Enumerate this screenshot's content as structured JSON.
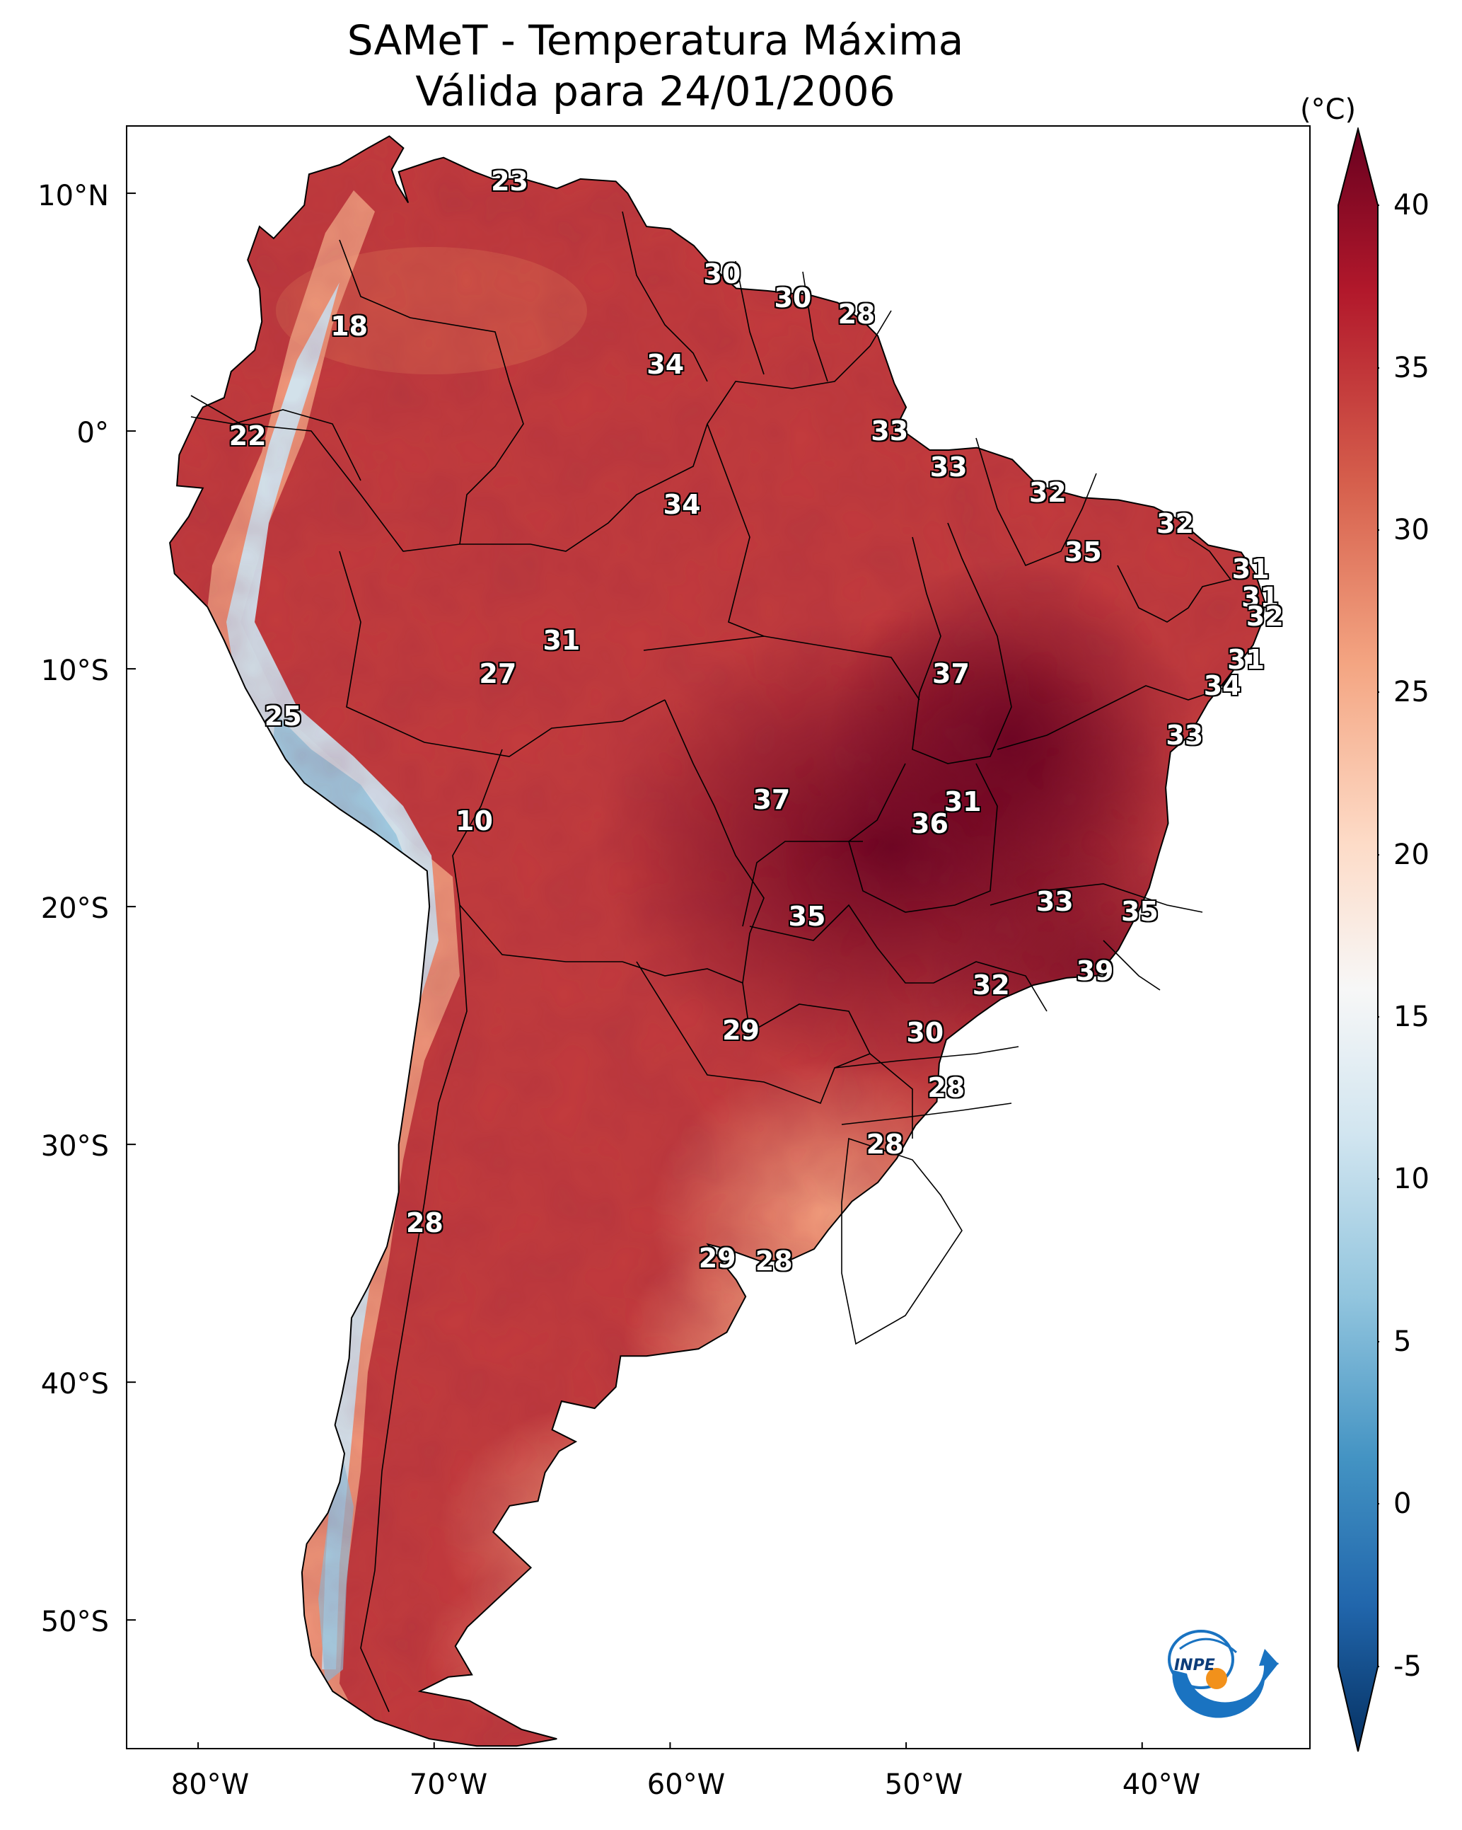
{
  "title": {
    "line1": "SAMeT - Temperatura Máxima",
    "line2": "Válida para 24/01/2006"
  },
  "axes": {
    "lon_ticks": [
      "80°W",
      "70°W",
      "60°W",
      "50°W",
      "40°W"
    ],
    "lat_ticks": [
      "10°N",
      "0°",
      "10°S",
      "20°S",
      "30°S",
      "40°S",
      "50°S"
    ]
  },
  "colorbar": {
    "unit": "(°C)",
    "ticks": [
      "40",
      "35",
      "30",
      "25",
      "20",
      "15",
      "10",
      "5",
      "0",
      "-5"
    ],
    "min": -5,
    "max": 40,
    "colors": {
      "max": "#67001f",
      "hot": "#b2182b",
      "warm": "#d6604d",
      "mild": "#f4a582",
      "pale": "#fddbc7",
      "neutral": "#f7f7f7",
      "cool": "#d1e5f0",
      "cold": "#92c5de",
      "colder": "#4393c3",
      "coldest": "#2166ac",
      "min": "#053061"
    }
  },
  "map_labels": [
    {
      "text": "23",
      "lon": -66.8,
      "lat": 10.5
    },
    {
      "text": "18",
      "lon": -73.6,
      "lat": 4.4
    },
    {
      "text": "30",
      "lon": -57.8,
      "lat": 6.6
    },
    {
      "text": "30",
      "lon": -54.8,
      "lat": 5.6
    },
    {
      "text": "28",
      "lon": -52.1,
      "lat": 4.9
    },
    {
      "text": "34",
      "lon": -60.2,
      "lat": 2.8
    },
    {
      "text": "22",
      "lon": -77.9,
      "lat": -0.2
    },
    {
      "text": "33",
      "lon": -50.7,
      "lat": 0.0
    },
    {
      "text": "33",
      "lon": -48.2,
      "lat": -1.5
    },
    {
      "text": "32",
      "lon": -44.0,
      "lat": -2.6
    },
    {
      "text": "32",
      "lon": -38.6,
      "lat": -3.9
    },
    {
      "text": "34",
      "lon": -59.5,
      "lat": -3.1
    },
    {
      "text": "35",
      "lon": -42.5,
      "lat": -5.1
    },
    {
      "text": "31",
      "lon": -35.4,
      "lat": -5.8
    },
    {
      "text": "31",
      "lon": -35.0,
      "lat": -7.0
    },
    {
      "text": "32",
      "lon": -34.8,
      "lat": -7.8
    },
    {
      "text": "31",
      "lon": -64.6,
      "lat": -8.8
    },
    {
      "text": "27",
      "lon": -67.3,
      "lat": -10.2
    },
    {
      "text": "37",
      "lon": -48.1,
      "lat": -10.2
    },
    {
      "text": "31",
      "lon": -35.6,
      "lat": -9.6
    },
    {
      "text": "34",
      "lon": -36.6,
      "lat": -10.7
    },
    {
      "text": "25",
      "lon": -76.4,
      "lat": -12.0
    },
    {
      "text": "33",
      "lon": -38.2,
      "lat": -12.8
    },
    {
      "text": "37",
      "lon": -55.7,
      "lat": -15.5
    },
    {
      "text": "31",
      "lon": -47.6,
      "lat": -15.6
    },
    {
      "text": "36",
      "lon": -49.0,
      "lat": -16.5
    },
    {
      "text": "10",
      "lon": -68.3,
      "lat": -16.4
    },
    {
      "text": "33",
      "lon": -43.7,
      "lat": -19.8
    },
    {
      "text": "35",
      "lon": -40.1,
      "lat": -20.2
    },
    {
      "text": "35",
      "lon": -54.2,
      "lat": -20.4
    },
    {
      "text": "39",
      "lon": -42.0,
      "lat": -22.7
    },
    {
      "text": "32",
      "lon": -46.4,
      "lat": -23.3
    },
    {
      "text": "29",
      "lon": -57.0,
      "lat": -25.2
    },
    {
      "text": "30",
      "lon": -49.2,
      "lat": -25.3
    },
    {
      "text": "28",
      "lon": -48.3,
      "lat": -27.6
    },
    {
      "text": "28",
      "lon": -50.9,
      "lat": -30.0
    },
    {
      "text": "28",
      "lon": -70.4,
      "lat": -33.3
    },
    {
      "text": "29",
      "lon": -58.0,
      "lat": -34.8
    },
    {
      "text": "28",
      "lon": -55.6,
      "lat": -34.9
    }
  ],
  "logo": {
    "text": "INPE"
  }
}
